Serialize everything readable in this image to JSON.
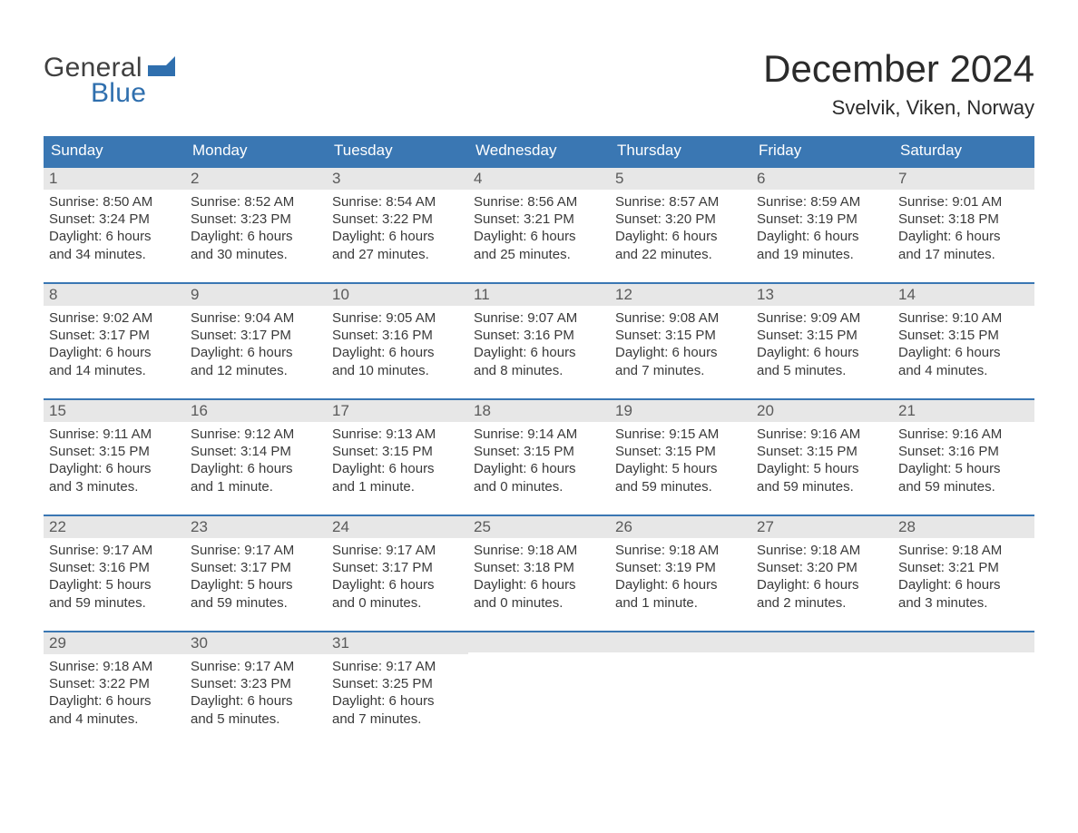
{
  "logo": {
    "word1": "General",
    "word2": "Blue",
    "flag_color": "#2f6fae"
  },
  "title": "December 2024",
  "location": "Svelvik, Viken, Norway",
  "colors": {
    "header_bg": "#3a77b3",
    "header_text": "#ffffff",
    "date_band_bg": "#e7e7e7",
    "date_band_text": "#5a5a5a",
    "body_text": "#3a3a3a",
    "rule": "#3a77b3",
    "page_bg": "#ffffff"
  },
  "day_names": [
    "Sunday",
    "Monday",
    "Tuesday",
    "Wednesday",
    "Thursday",
    "Friday",
    "Saturday"
  ],
  "weeks": [
    [
      {
        "date": "1",
        "sunrise": "Sunrise: 8:50 AM",
        "sunset": "Sunset: 3:24 PM",
        "dl1": "Daylight: 6 hours",
        "dl2": "and 34 minutes."
      },
      {
        "date": "2",
        "sunrise": "Sunrise: 8:52 AM",
        "sunset": "Sunset: 3:23 PM",
        "dl1": "Daylight: 6 hours",
        "dl2": "and 30 minutes."
      },
      {
        "date": "3",
        "sunrise": "Sunrise: 8:54 AM",
        "sunset": "Sunset: 3:22 PM",
        "dl1": "Daylight: 6 hours",
        "dl2": "and 27 minutes."
      },
      {
        "date": "4",
        "sunrise": "Sunrise: 8:56 AM",
        "sunset": "Sunset: 3:21 PM",
        "dl1": "Daylight: 6 hours",
        "dl2": "and 25 minutes."
      },
      {
        "date": "5",
        "sunrise": "Sunrise: 8:57 AM",
        "sunset": "Sunset: 3:20 PM",
        "dl1": "Daylight: 6 hours",
        "dl2": "and 22 minutes."
      },
      {
        "date": "6",
        "sunrise": "Sunrise: 8:59 AM",
        "sunset": "Sunset: 3:19 PM",
        "dl1": "Daylight: 6 hours",
        "dl2": "and 19 minutes."
      },
      {
        "date": "7",
        "sunrise": "Sunrise: 9:01 AM",
        "sunset": "Sunset: 3:18 PM",
        "dl1": "Daylight: 6 hours",
        "dl2": "and 17 minutes."
      }
    ],
    [
      {
        "date": "8",
        "sunrise": "Sunrise: 9:02 AM",
        "sunset": "Sunset: 3:17 PM",
        "dl1": "Daylight: 6 hours",
        "dl2": "and 14 minutes."
      },
      {
        "date": "9",
        "sunrise": "Sunrise: 9:04 AM",
        "sunset": "Sunset: 3:17 PM",
        "dl1": "Daylight: 6 hours",
        "dl2": "and 12 minutes."
      },
      {
        "date": "10",
        "sunrise": "Sunrise: 9:05 AM",
        "sunset": "Sunset: 3:16 PM",
        "dl1": "Daylight: 6 hours",
        "dl2": "and 10 minutes."
      },
      {
        "date": "11",
        "sunrise": "Sunrise: 9:07 AM",
        "sunset": "Sunset: 3:16 PM",
        "dl1": "Daylight: 6 hours",
        "dl2": "and 8 minutes."
      },
      {
        "date": "12",
        "sunrise": "Sunrise: 9:08 AM",
        "sunset": "Sunset: 3:15 PM",
        "dl1": "Daylight: 6 hours",
        "dl2": "and 7 minutes."
      },
      {
        "date": "13",
        "sunrise": "Sunrise: 9:09 AM",
        "sunset": "Sunset: 3:15 PM",
        "dl1": "Daylight: 6 hours",
        "dl2": "and 5 minutes."
      },
      {
        "date": "14",
        "sunrise": "Sunrise: 9:10 AM",
        "sunset": "Sunset: 3:15 PM",
        "dl1": "Daylight: 6 hours",
        "dl2": "and 4 minutes."
      }
    ],
    [
      {
        "date": "15",
        "sunrise": "Sunrise: 9:11 AM",
        "sunset": "Sunset: 3:15 PM",
        "dl1": "Daylight: 6 hours",
        "dl2": "and 3 minutes."
      },
      {
        "date": "16",
        "sunrise": "Sunrise: 9:12 AM",
        "sunset": "Sunset: 3:14 PM",
        "dl1": "Daylight: 6 hours",
        "dl2": "and 1 minute."
      },
      {
        "date": "17",
        "sunrise": "Sunrise: 9:13 AM",
        "sunset": "Sunset: 3:15 PM",
        "dl1": "Daylight: 6 hours",
        "dl2": "and 1 minute."
      },
      {
        "date": "18",
        "sunrise": "Sunrise: 9:14 AM",
        "sunset": "Sunset: 3:15 PM",
        "dl1": "Daylight: 6 hours",
        "dl2": "and 0 minutes."
      },
      {
        "date": "19",
        "sunrise": "Sunrise: 9:15 AM",
        "sunset": "Sunset: 3:15 PM",
        "dl1": "Daylight: 5 hours",
        "dl2": "and 59 minutes."
      },
      {
        "date": "20",
        "sunrise": "Sunrise: 9:16 AM",
        "sunset": "Sunset: 3:15 PM",
        "dl1": "Daylight: 5 hours",
        "dl2": "and 59 minutes."
      },
      {
        "date": "21",
        "sunrise": "Sunrise: 9:16 AM",
        "sunset": "Sunset: 3:16 PM",
        "dl1": "Daylight: 5 hours",
        "dl2": "and 59 minutes."
      }
    ],
    [
      {
        "date": "22",
        "sunrise": "Sunrise: 9:17 AM",
        "sunset": "Sunset: 3:16 PM",
        "dl1": "Daylight: 5 hours",
        "dl2": "and 59 minutes."
      },
      {
        "date": "23",
        "sunrise": "Sunrise: 9:17 AM",
        "sunset": "Sunset: 3:17 PM",
        "dl1": "Daylight: 5 hours",
        "dl2": "and 59 minutes."
      },
      {
        "date": "24",
        "sunrise": "Sunrise: 9:17 AM",
        "sunset": "Sunset: 3:17 PM",
        "dl1": "Daylight: 6 hours",
        "dl2": "and 0 minutes."
      },
      {
        "date": "25",
        "sunrise": "Sunrise: 9:18 AM",
        "sunset": "Sunset: 3:18 PM",
        "dl1": "Daylight: 6 hours",
        "dl2": "and 0 minutes."
      },
      {
        "date": "26",
        "sunrise": "Sunrise: 9:18 AM",
        "sunset": "Sunset: 3:19 PM",
        "dl1": "Daylight: 6 hours",
        "dl2": "and 1 minute."
      },
      {
        "date": "27",
        "sunrise": "Sunrise: 9:18 AM",
        "sunset": "Sunset: 3:20 PM",
        "dl1": "Daylight: 6 hours",
        "dl2": "and 2 minutes."
      },
      {
        "date": "28",
        "sunrise": "Sunrise: 9:18 AM",
        "sunset": "Sunset: 3:21 PM",
        "dl1": "Daylight: 6 hours",
        "dl2": "and 3 minutes."
      }
    ],
    [
      {
        "date": "29",
        "sunrise": "Sunrise: 9:18 AM",
        "sunset": "Sunset: 3:22 PM",
        "dl1": "Daylight: 6 hours",
        "dl2": "and 4 minutes."
      },
      {
        "date": "30",
        "sunrise": "Sunrise: 9:17 AM",
        "sunset": "Sunset: 3:23 PM",
        "dl1": "Daylight: 6 hours",
        "dl2": "and 5 minutes."
      },
      {
        "date": "31",
        "sunrise": "Sunrise: 9:17 AM",
        "sunset": "Sunset: 3:25 PM",
        "dl1": "Daylight: 6 hours",
        "dl2": "and 7 minutes."
      },
      {
        "empty": true
      },
      {
        "empty": true
      },
      {
        "empty": true
      },
      {
        "empty": true
      }
    ]
  ]
}
